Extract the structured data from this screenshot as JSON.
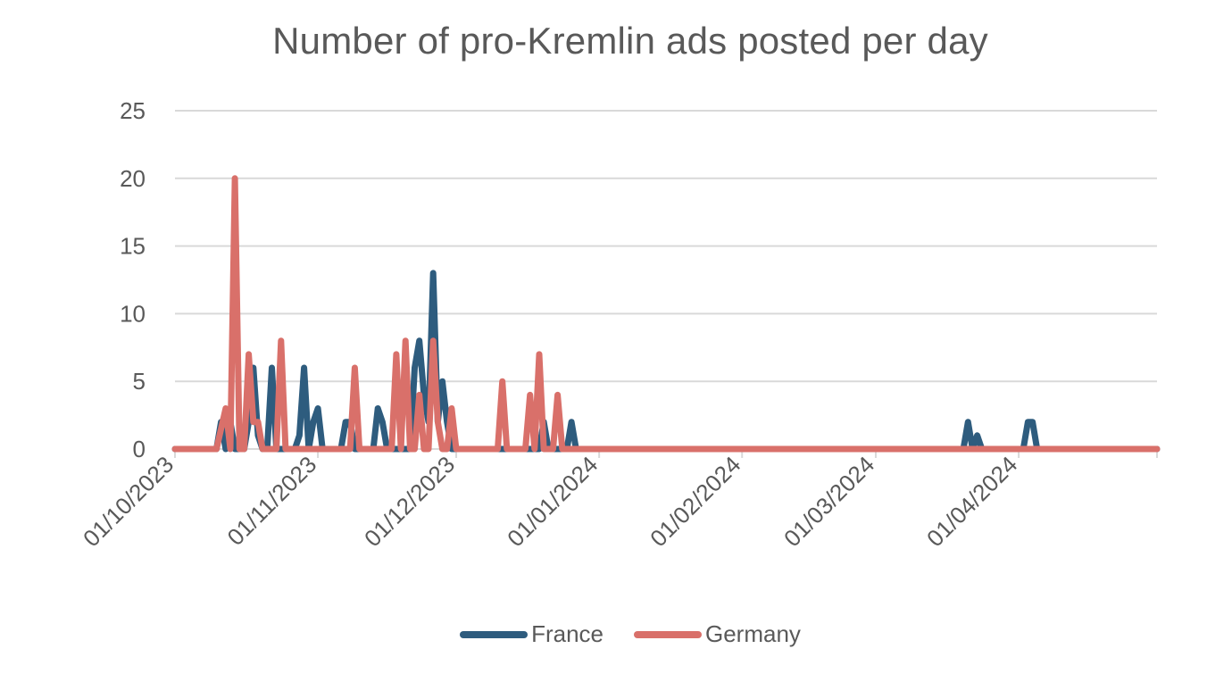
{
  "chart_data": {
    "type": "line",
    "title": "Number of pro-Kremlin ads posted per day",
    "xlabel": "",
    "ylabel": "",
    "ylim": [
      0,
      25
    ],
    "yticks": [
      0,
      5,
      10,
      15,
      20,
      25
    ],
    "xlim_days": [
      0,
      213
    ],
    "xticks": [
      {
        "label": "01/10/2023",
        "day": 0
      },
      {
        "label": "01/11/2023",
        "day": 31
      },
      {
        "label": "01/12/2023",
        "day": 61
      },
      {
        "label": "01/01/2024",
        "day": 92
      },
      {
        "label": "01/02/2024",
        "day": 123
      },
      {
        "label": "01/03/2024",
        "day": 152
      },
      {
        "label": "01/04/2024",
        "day": 183
      }
    ],
    "grid": true,
    "legend_position": "bottom-center",
    "series": [
      {
        "name": "France",
        "color": "#2e5c7e",
        "points": [
          [
            0,
            0
          ],
          [
            9,
            0
          ],
          [
            10,
            2
          ],
          [
            11,
            0
          ],
          [
            12,
            2
          ],
          [
            13,
            0
          ],
          [
            15,
            0
          ],
          [
            16,
            2
          ],
          [
            17,
            6
          ],
          [
            18,
            1
          ],
          [
            19,
            0
          ],
          [
            20,
            0
          ],
          [
            21,
            6
          ],
          [
            22,
            0
          ],
          [
            26,
            0
          ],
          [
            27,
            1
          ],
          [
            28,
            6
          ],
          [
            29,
            0
          ],
          [
            30,
            2
          ],
          [
            31,
            3
          ],
          [
            32,
            0
          ],
          [
            36,
            0
          ],
          [
            37,
            2
          ],
          [
            38,
            2
          ],
          [
            39,
            0
          ],
          [
            43,
            0
          ],
          [
            44,
            3
          ],
          [
            45,
            2
          ],
          [
            46,
            0
          ],
          [
            51,
            0
          ],
          [
            52,
            6
          ],
          [
            53,
            8
          ],
          [
            54,
            4
          ],
          [
            55,
            2
          ],
          [
            56,
            13
          ],
          [
            57,
            2
          ],
          [
            58,
            5
          ],
          [
            59,
            2
          ],
          [
            60,
            0
          ],
          [
            79,
            0
          ],
          [
            80,
            2
          ],
          [
            81,
            0
          ],
          [
            85,
            0
          ],
          [
            86,
            2
          ],
          [
            87,
            0
          ],
          [
            171,
            0
          ],
          [
            172,
            2
          ],
          [
            173,
            0
          ],
          [
            174,
            1
          ],
          [
            175,
            0
          ],
          [
            184,
            0
          ],
          [
            185,
            2
          ],
          [
            186,
            2
          ],
          [
            187,
            0
          ],
          [
            213,
            0
          ]
        ]
      },
      {
        "name": "Germany",
        "color": "#d9706a",
        "points": [
          [
            0,
            0
          ],
          [
            9,
            0
          ],
          [
            11,
            3
          ],
          [
            12,
            0
          ],
          [
            13,
            20
          ],
          [
            14,
            0
          ],
          [
            15,
            0
          ],
          [
            16,
            7
          ],
          [
            17,
            2
          ],
          [
            18,
            2
          ],
          [
            19,
            0
          ],
          [
            22,
            0
          ],
          [
            23,
            8
          ],
          [
            24,
            0
          ],
          [
            38,
            0
          ],
          [
            39,
            6
          ],
          [
            40,
            0
          ],
          [
            47,
            0
          ],
          [
            48,
            7
          ],
          [
            49,
            0
          ],
          [
            50,
            8
          ],
          [
            51,
            0
          ],
          [
            52,
            0
          ],
          [
            53,
            4
          ],
          [
            54,
            0
          ],
          [
            55,
            0
          ],
          [
            56,
            8
          ],
          [
            57,
            2
          ],
          [
            58,
            0
          ],
          [
            59,
            0
          ],
          [
            60,
            3
          ],
          [
            61,
            0
          ],
          [
            70,
            0
          ],
          [
            71,
            5
          ],
          [
            72,
            0
          ],
          [
            76,
            0
          ],
          [
            77,
            4
          ],
          [
            78,
            0
          ],
          [
            79,
            7
          ],
          [
            80,
            0
          ],
          [
            82,
            0
          ],
          [
            83,
            4
          ],
          [
            84,
            0
          ],
          [
            213,
            0
          ]
        ]
      }
    ]
  }
}
